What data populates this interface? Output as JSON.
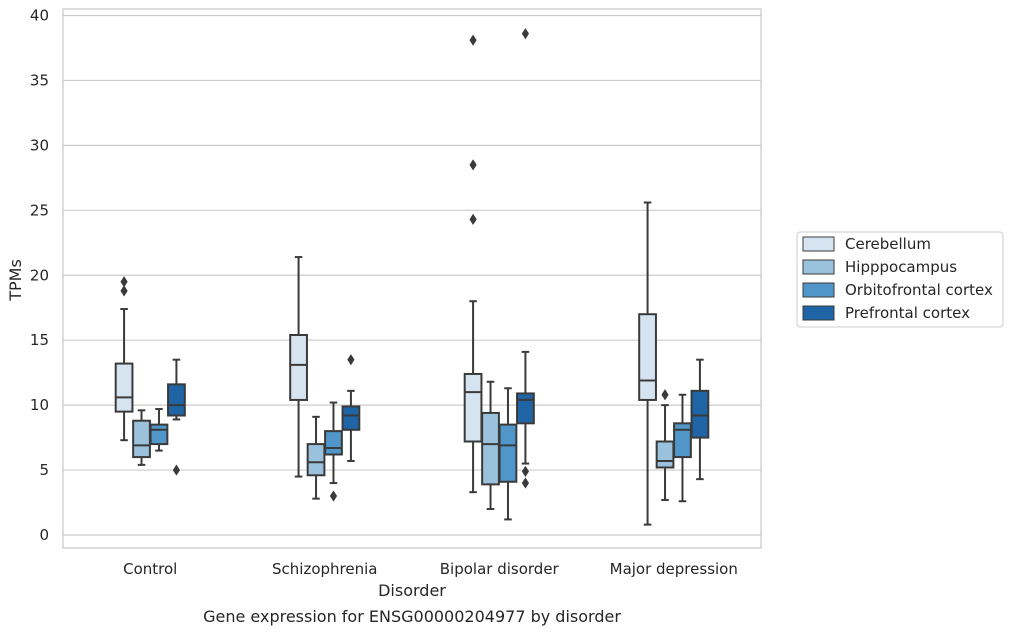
{
  "chart_data": {
    "type": "box",
    "caption": "Gene expression for ENSG00000204977 by disorder",
    "xlabel": "Disorder",
    "ylabel": "TPMs",
    "ylim": [
      -1,
      40.5
    ],
    "yticks": [
      0,
      5,
      10,
      15,
      20,
      25,
      30,
      35,
      40
    ],
    "grid": "horizontal",
    "legend_position": "right",
    "categories": [
      "Control",
      "Schizophrenia",
      "Bipolar disorder",
      "Major depression"
    ],
    "series": [
      {
        "name": "Cerebellum",
        "color": "#d6e4f2",
        "boxes": [
          {
            "whisker_low": 7.3,
            "q1": 9.5,
            "median": 10.6,
            "q3": 13.2,
            "whisker_high": 17.4,
            "outliers": [
              19.5,
              18.8
            ]
          },
          {
            "whisker_low": 4.5,
            "q1": 10.4,
            "median": 13.1,
            "q3": 15.4,
            "whisker_high": 21.4,
            "outliers": []
          },
          {
            "whisker_low": 3.3,
            "q1": 7.2,
            "median": 11.0,
            "q3": 12.4,
            "whisker_high": 18.0,
            "outliers": [
              38.1,
              28.5,
              24.3
            ]
          },
          {
            "whisker_low": 0.8,
            "q1": 10.4,
            "median": 11.9,
            "q3": 17.0,
            "whisker_high": 25.6,
            "outliers": []
          }
        ]
      },
      {
        "name": "Hipppocampus",
        "color": "#9ac2dc",
        "boxes": [
          {
            "whisker_low": 5.4,
            "q1": 6.0,
            "median": 6.9,
            "q3": 8.8,
            "whisker_high": 9.6,
            "outliers": []
          },
          {
            "whisker_low": 2.8,
            "q1": 4.6,
            "median": 5.6,
            "q3": 7.0,
            "whisker_high": 9.1,
            "outliers": []
          },
          {
            "whisker_low": 2.0,
            "q1": 3.9,
            "median": 7.0,
            "q3": 9.4,
            "whisker_high": 11.8,
            "outliers": []
          },
          {
            "whisker_low": 2.7,
            "q1": 5.2,
            "median": 5.7,
            "q3": 7.2,
            "whisker_high": 10.0,
            "outliers": [
              10.8
            ]
          }
        ]
      },
      {
        "name": "Orbitofrontal cortex",
        "color": "#5196c8",
        "boxes": [
          {
            "whisker_low": 6.5,
            "q1": 7.0,
            "median": 8.1,
            "q3": 8.5,
            "whisker_high": 9.7,
            "outliers": []
          },
          {
            "whisker_low": 4.0,
            "q1": 6.2,
            "median": 6.7,
            "q3": 8.0,
            "whisker_high": 10.2,
            "outliers": [
              3.0
            ]
          },
          {
            "whisker_low": 1.2,
            "q1": 4.1,
            "median": 6.9,
            "q3": 8.5,
            "whisker_high": 11.3,
            "outliers": []
          },
          {
            "whisker_low": 2.6,
            "q1": 6.0,
            "median": 8.1,
            "q3": 8.6,
            "whisker_high": 10.8,
            "outliers": []
          }
        ]
      },
      {
        "name": "Prefrontal cortex",
        "color": "#1f65a6",
        "boxes": [
          {
            "whisker_low": 8.9,
            "q1": 9.2,
            "median": 10.0,
            "q3": 11.6,
            "whisker_high": 13.5,
            "outliers": [
              5.0
            ]
          },
          {
            "whisker_low": 5.7,
            "q1": 8.1,
            "median": 9.2,
            "q3": 9.9,
            "whisker_high": 11.1,
            "outliers": [
              13.5
            ]
          },
          {
            "whisker_low": 5.5,
            "q1": 8.6,
            "median": 10.4,
            "q3": 10.9,
            "whisker_high": 14.1,
            "outliers": [
              38.6,
              4.9,
              4.0
            ]
          },
          {
            "whisker_low": 4.3,
            "q1": 7.5,
            "median": 9.2,
            "q3": 11.1,
            "whisker_high": 13.5,
            "outliers": []
          }
        ]
      }
    ]
  }
}
